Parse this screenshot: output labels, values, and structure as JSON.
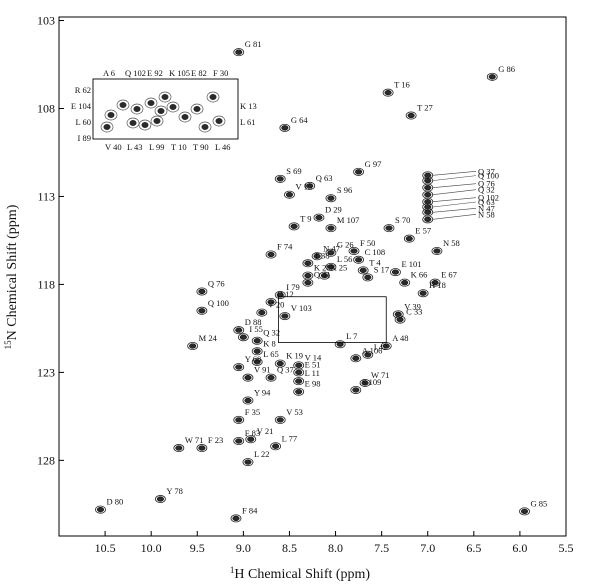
{
  "chart_data": {
    "type": "scatter",
    "title": "",
    "xlabel_prefix": "1",
    "xlabel": "H Chemical Shift (ppm)",
    "ylabel_prefix": "15",
    "ylabel": "N Chemical Shift (ppm)",
    "xlim": [
      11.0,
      5.5
    ],
    "ylim": [
      102.8,
      132.3
    ],
    "x_reversed": true,
    "y_reversed": true,
    "x_ticks": [
      10.5,
      10.0,
      9.5,
      9.0,
      8.5,
      8.0,
      7.5,
      7.0,
      6.5,
      6.0,
      5.5
    ],
    "x_tick_labels": [
      "10.5",
      "10.0",
      "9.5",
      "9.0",
      "8.5",
      "8.0",
      "7.5",
      "7.0",
      "6.5",
      "6.0",
      "5.5"
    ],
    "y_ticks": [
      103,
      108,
      113,
      118,
      123,
      128
    ],
    "y_tick_labels": [
      "103",
      "108",
      "113",
      "118",
      "123",
      "128"
    ],
    "grid": false,
    "legend": "none",
    "peak_color": "#2a2a2a",
    "peaks": [
      {
        "label": "G 81",
        "x": 9.05,
        "y": 104.8
      },
      {
        "label": "G 86",
        "x": 6.3,
        "y": 106.2
      },
      {
        "label": "T 16",
        "x": 7.43,
        "y": 107.1
      },
      {
        "label": "T 27",
        "x": 7.18,
        "y": 108.4
      },
      {
        "label": "G 64",
        "x": 8.55,
        "y": 109.1
      },
      {
        "label": "G 97",
        "x": 7.75,
        "y": 111.6
      },
      {
        "label": "S 69",
        "x": 8.6,
        "y": 112.0
      },
      {
        "label": "Q 63",
        "x": 8.28,
        "y": 112.4
      },
      {
        "label": "V 15",
        "x": 8.5,
        "y": 112.9
      },
      {
        "label": "S 96",
        "x": 8.05,
        "y": 113.1
      },
      {
        "label": "D 29",
        "x": 8.18,
        "y": 114.2
      },
      {
        "label": "Q 37",
        "x": 7.0,
        "y": 111.8
      },
      {
        "label": "Q 100",
        "x": 7.0,
        "y": 112.1
      },
      {
        "label": "Q 76",
        "x": 7.0,
        "y": 112.5
      },
      {
        "label": "Q 32",
        "x": 7.0,
        "y": 112.9
      },
      {
        "label": "Q 102",
        "x": 7.0,
        "y": 113.3
      },
      {
        "label": "Q 63",
        "x": 7.0,
        "y": 113.6
      },
      {
        "label": "N 47",
        "x": 7.0,
        "y": 113.9
      },
      {
        "label": "N 58",
        "x": 7.0,
        "y": 114.3
      },
      {
        "label": "T 9",
        "x": 8.45,
        "y": 114.7
      },
      {
        "label": "M 107",
        "x": 8.05,
        "y": 114.8
      },
      {
        "label": "S 70",
        "x": 7.42,
        "y": 114.8
      },
      {
        "label": "E 57",
        "x": 7.2,
        "y": 115.4
      },
      {
        "label": "N 58",
        "x": 6.9,
        "y": 116.1
      },
      {
        "label": "F 74",
        "x": 8.7,
        "y": 116.3
      },
      {
        "label": "N 47",
        "x": 8.2,
        "y": 116.4
      },
      {
        "label": "G 26",
        "x": 8.05,
        "y": 116.2
      },
      {
        "label": "F 50",
        "x": 7.8,
        "y": 116.1
      },
      {
        "label": "C 108",
        "x": 7.75,
        "y": 116.6
      },
      {
        "label": "T 38",
        "x": 8.3,
        "y": 116.8
      },
      {
        "label": "L 56",
        "x": 8.05,
        "y": 117.0
      },
      {
        "label": "T 4",
        "x": 7.7,
        "y": 117.2
      },
      {
        "label": "K 28",
        "x": 8.3,
        "y": 117.5
      },
      {
        "label": "K 25",
        "x": 8.12,
        "y": 117.5
      },
      {
        "label": "S 17",
        "x": 7.65,
        "y": 117.6
      },
      {
        "label": "E 101",
        "x": 7.35,
        "y": 117.3
      },
      {
        "label": "Q 41",
        "x": 8.3,
        "y": 117.9
      },
      {
        "label": "K 66",
        "x": 7.25,
        "y": 117.9
      },
      {
        "label": "E 67",
        "x": 6.92,
        "y": 117.9
      },
      {
        "label": "I 79",
        "x": 8.6,
        "y": 118.6
      },
      {
        "label": "H 18",
        "x": 7.05,
        "y": 118.5
      },
      {
        "label": "Q 76",
        "x": 9.45,
        "y": 118.4
      },
      {
        "label": "D 12",
        "x": 8.7,
        "y": 119.0
      },
      {
        "label": "V 20",
        "x": 8.8,
        "y": 119.6
      },
      {
        "label": "V 103",
        "x": 8.55,
        "y": 119.8
      },
      {
        "label": "V 39",
        "x": 7.32,
        "y": 119.7
      },
      {
        "label": "C 33",
        "x": 7.3,
        "y": 120.0
      },
      {
        "label": "Q 100",
        "x": 9.45,
        "y": 119.5
      },
      {
        "label": "D 88",
        "x": 9.05,
        "y": 120.6
      },
      {
        "label": "I 55",
        "x": 9.0,
        "y": 121.0
      },
      {
        "label": "Q 32",
        "x": 8.85,
        "y": 121.2
      },
      {
        "label": "M 24",
        "x": 9.55,
        "y": 121.5
      },
      {
        "label": "K 8",
        "x": 8.85,
        "y": 121.8
      },
      {
        "label": "L 7",
        "x": 7.95,
        "y": 121.4
      },
      {
        "label": "A 48",
        "x": 7.45,
        "y": 121.5
      },
      {
        "label": "L 65",
        "x": 8.85,
        "y": 122.4
      },
      {
        "label": "I 42",
        "x": 7.65,
        "y": 122.0
      },
      {
        "label": "Y 68",
        "x": 9.05,
        "y": 122.7
      },
      {
        "label": "K 19",
        "x": 8.6,
        "y": 122.5
      },
      {
        "label": "V 14",
        "x": 8.4,
        "y": 122.6
      },
      {
        "label": "A 106",
        "x": 7.78,
        "y": 122.2
      },
      {
        "label": "Q 37",
        "x": 8.7,
        "y": 123.3
      },
      {
        "label": "V 91",
        "x": 8.95,
        "y": 123.3
      },
      {
        "label": "E 51",
        "x": 8.4,
        "y": 123.0
      },
      {
        "label": "L 11",
        "x": 8.4,
        "y": 123.5
      },
      {
        "label": "W 71",
        "x": 7.68,
        "y": 123.6
      },
      {
        "label": "E 98",
        "x": 8.4,
        "y": 124.1
      },
      {
        "label": "S 109",
        "x": 7.78,
        "y": 124.0
      },
      {
        "label": "Y 94",
        "x": 8.95,
        "y": 124.6
      },
      {
        "label": "F 35",
        "x": 9.05,
        "y": 125.7
      },
      {
        "label": "V 53",
        "x": 8.6,
        "y": 125.7
      },
      {
        "label": "V 21",
        "x": 8.92,
        "y": 126.8
      },
      {
        "label": "W 71",
        "x": 9.7,
        "y": 127.3
      },
      {
        "label": "F 83",
        "x": 9.05,
        "y": 126.9
      },
      {
        "label": "F 23",
        "x": 9.45,
        "y": 127.3
      },
      {
        "label": "L 77",
        "x": 8.65,
        "y": 127.2
      },
      {
        "label": "L 22",
        "x": 8.95,
        "y": 128.1
      },
      {
        "label": "Y 78",
        "x": 9.9,
        "y": 130.2
      },
      {
        "label": "D 80",
        "x": 10.55,
        "y": 130.8
      },
      {
        "label": "F 84",
        "x": 9.08,
        "y": 131.3
      },
      {
        "label": "G 85",
        "x": 5.95,
        "y": 130.9
      }
    ],
    "inset_labels": {
      "left": [
        "R 62",
        "E 104",
        "L 60",
        "I 89"
      ],
      "top": [
        "A 6",
        "Q 102",
        "E 92",
        "K 105",
        "E 82",
        "F 30"
      ],
      "right": [
        "K 13",
        "L 61"
      ],
      "bottom": [
        "V 40",
        "L 43",
        "L 99",
        "T 10",
        "T 90",
        "L 46"
      ]
    }
  }
}
